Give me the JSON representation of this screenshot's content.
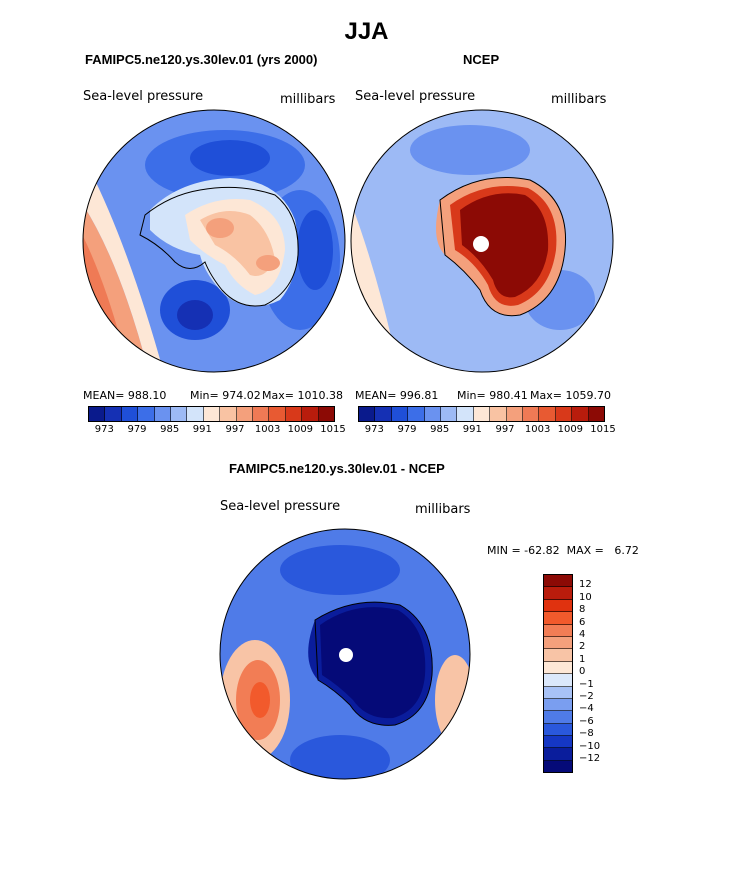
{
  "title": "JJA",
  "panels": [
    {
      "id": "model",
      "title": "FAMIPC5.ne120.ys.30lev.01 (yrs 2000)",
      "variable": "Sea-level pressure",
      "units": "millibars",
      "mean_label": "MEAN= 988.10",
      "min_label": "Min= 974.02",
      "max_label": "Max= 1010.38"
    },
    {
      "id": "obs",
      "title": "NCEP",
      "variable": "Sea-level pressure",
      "units": "millibars",
      "mean_label": "MEAN= 996.81",
      "min_label": "Min= 980.41",
      "max_label": "Max= 1059.70"
    }
  ],
  "diff": {
    "title": "FAMIPC5.ne120.ys.30lev.01 - NCEP",
    "variable": "Sea-level pressure",
    "units": "millibars",
    "minmax_label": "MIN = -62.82  MAX =   6.72"
  },
  "colorbar_top": {
    "colors": [
      "#0a1a8c",
      "#1530b4",
      "#1f4fd8",
      "#3c6ee8",
      "#6a92f0",
      "#9dbaf5",
      "#d3e4fa",
      "#fde7d6",
      "#f9c3a3",
      "#f4a07c",
      "#ef7a55",
      "#e85a32",
      "#d8391a",
      "#b91c0c",
      "#8c0a05"
    ],
    "ticks": [
      "973",
      "979",
      "985",
      "991",
      "997",
      "1003",
      "1009",
      "1015"
    ]
  },
  "colorbar_diff": {
    "colors": [
      "#8c0a05",
      "#b91c0c",
      "#e0320f",
      "#f25a2c",
      "#f27d55",
      "#f4a07c",
      "#f8c4a6",
      "#fde7d6",
      "#dbe8fb",
      "#a8c2f6",
      "#7a9ef0",
      "#4f7be8",
      "#2a58dc",
      "#1537c4",
      "#0a1d9c",
      "#050a78"
    ],
    "ticks": [
      "12",
      "10",
      "8",
      "6",
      "4",
      "2",
      "1",
      "0",
      "−1",
      "−2",
      "−4",
      "−6",
      "−8",
      "−10",
      "−12"
    ]
  }
}
